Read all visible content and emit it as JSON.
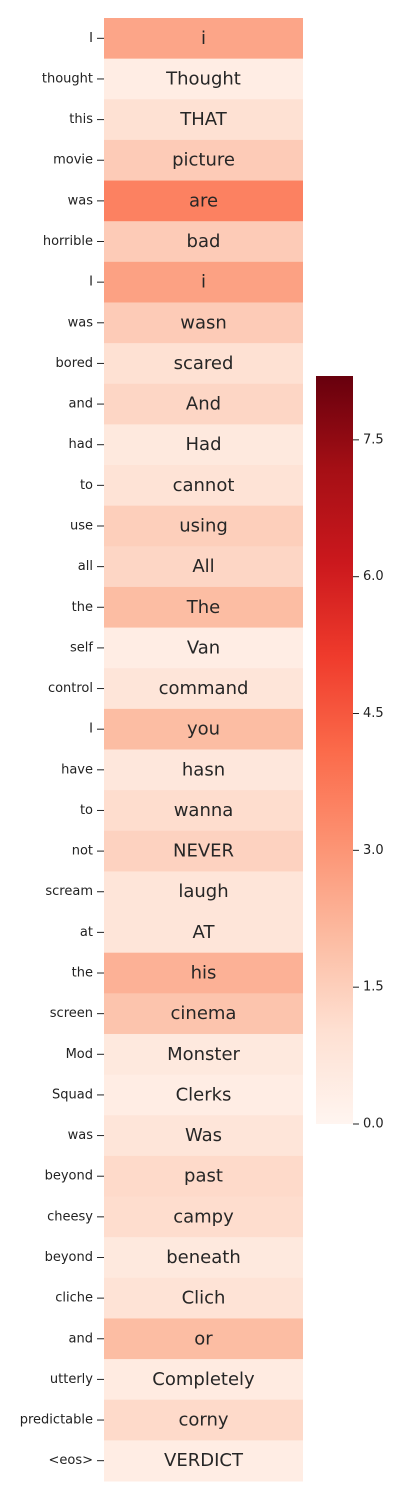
{
  "chart_data": {
    "type": "heatmap",
    "title": "",
    "xlabel": "",
    "ylabel": "",
    "colormap": "Reds",
    "color_range": [
      0,
      8.2
    ],
    "row_labels": [
      "I",
      "thought",
      "this",
      "movie",
      "was",
      "horrible",
      "I",
      "was",
      "bored",
      "and",
      "had",
      "to",
      "use",
      "all",
      "the",
      "self",
      "control",
      "I",
      "have",
      "to",
      "not",
      "scream",
      "at",
      "the",
      "screen",
      "Mod",
      "Squad",
      "was",
      "beyond",
      "cheesy",
      "beyond",
      "cliche",
      "and",
      "utterly",
      "predictable",
      "<eos>"
    ],
    "cell_labels": [
      "i",
      "Thought",
      "THAT",
      "picture",
      "are",
      "bad",
      "i",
      "wasn",
      "scared",
      "And",
      "Had",
      "cannot",
      "using",
      "All",
      "The",
      "Van",
      "command",
      "you",
      "hasn",
      "wanna",
      "NEVER",
      "laugh",
      "AT",
      "his",
      "cinema",
      "Monster",
      "Clerks",
      "Was",
      "past",
      "campy",
      "beneath",
      "Clich",
      "or",
      "Completely",
      "corny",
      "VERDICT"
    ],
    "values": [
      2.6,
      0.4,
      1.0,
      1.6,
      3.5,
      1.6,
      2.7,
      1.6,
      1.0,
      1.3,
      0.6,
      0.9,
      1.5,
      1.3,
      2.0,
      0.4,
      0.8,
      2.0,
      0.7,
      1.1,
      1.4,
      0.8,
      0.8,
      2.3,
      1.8,
      0.6,
      0.4,
      0.8,
      1.2,
      1.1,
      0.6,
      0.9,
      2.0,
      0.5,
      1.2,
      0.4
    ],
    "colorbar": {
      "ticks": [
        0.0,
        1.5,
        3.0,
        4.5,
        6.0,
        7.5
      ],
      "tick_labels": [
        "0.0",
        "1.5",
        "3.0",
        "4.5",
        "6.0",
        "7.5"
      ]
    },
    "grid": false
  }
}
